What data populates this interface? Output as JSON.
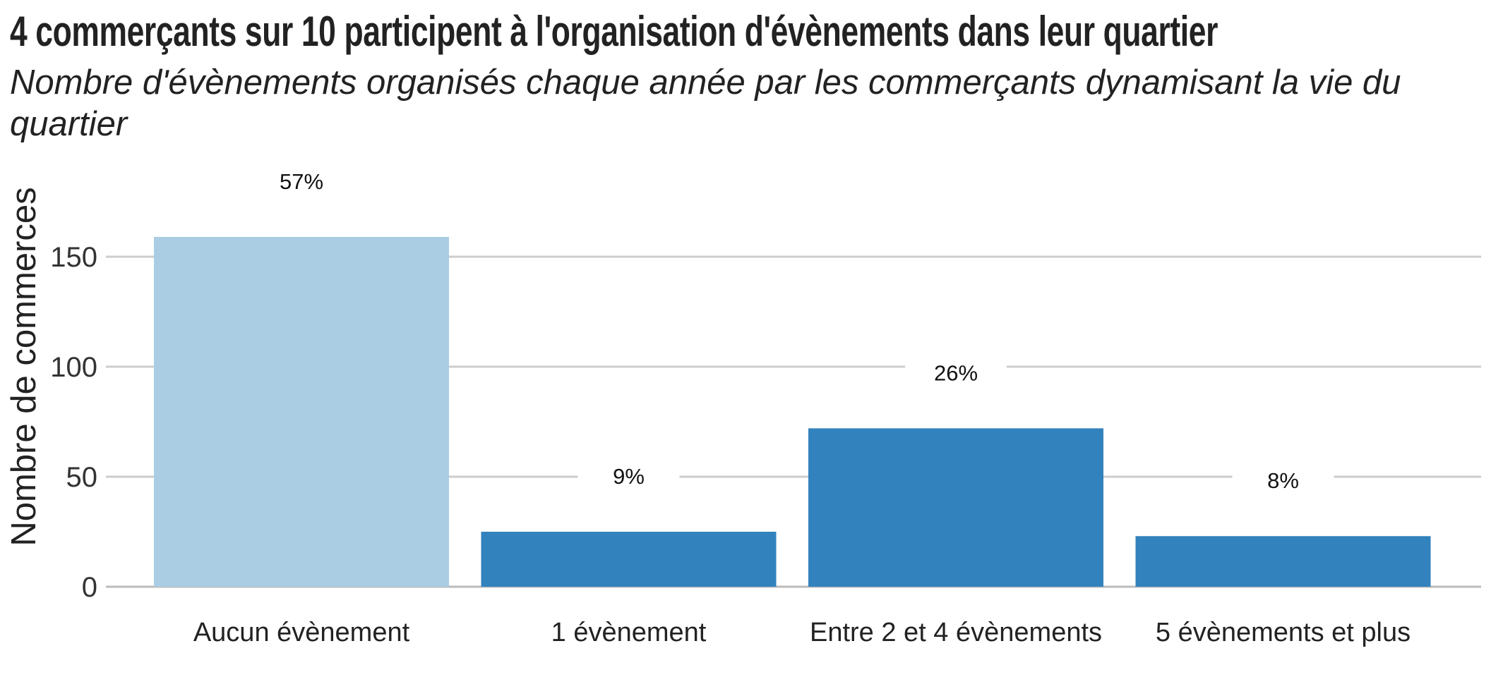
{
  "chart_data": {
    "type": "bar",
    "title": "4 commerçants sur 10 participent à l'organisation d'évènements dans leur quartier",
    "subtitle": "Nombre d'évènements organisés chaque année par les commerçants dynamisant la vie du quartier",
    "xlabel": "",
    "ylabel": "Nombre de commerces",
    "categories": [
      "Aucun évènement",
      "1 évènement",
      "Entre 2 et 4 évènements",
      "5 évènements et plus"
    ],
    "values": [
      159,
      25,
      72,
      23
    ],
    "data_labels": [
      "57%",
      "9%",
      "26%",
      "8%"
    ],
    "colors": [
      "#abcde4",
      "#3282bd",
      "#3282bd",
      "#3282bd"
    ],
    "ylim": [
      0,
      180
    ],
    "yticks": [
      0,
      50,
      100,
      150
    ],
    "ytick_labels": [
      "0",
      "50",
      "100",
      "150"
    ],
    "grid": "horizontal",
    "legend": "none"
  }
}
